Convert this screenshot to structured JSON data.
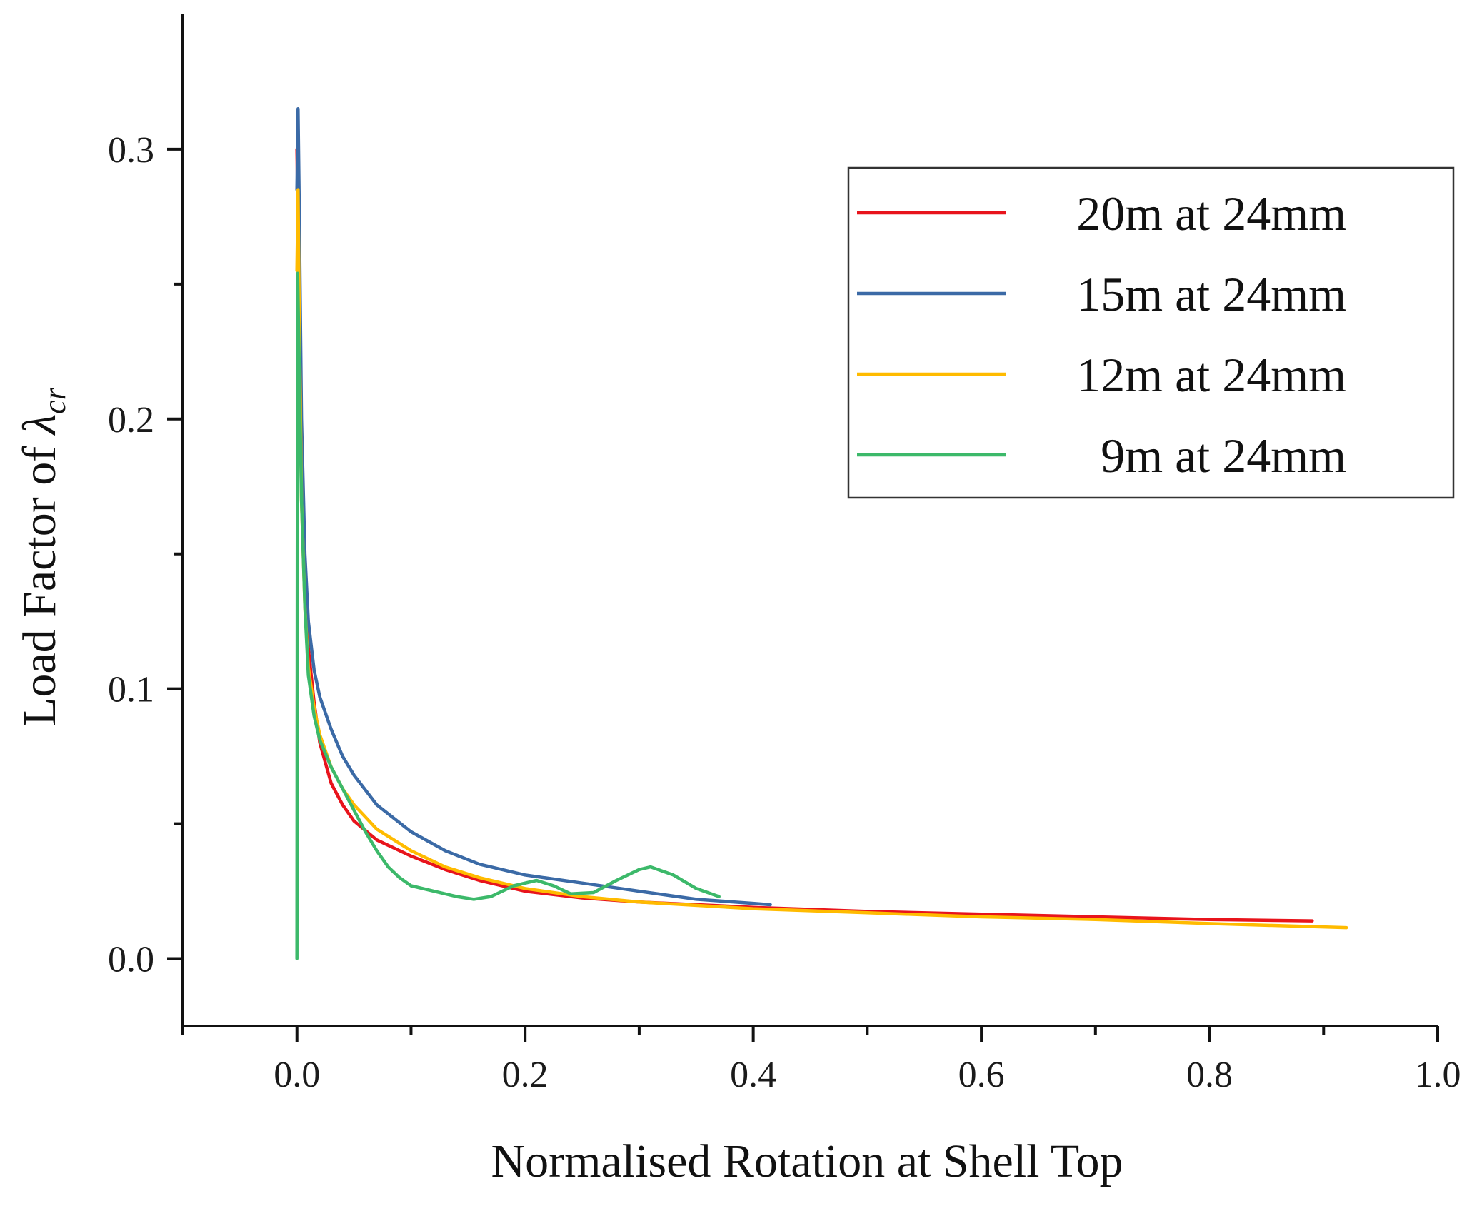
{
  "chart_data": {
    "type": "line",
    "title": "",
    "xlabel": "Normalised Rotation at Shell Top",
    "ylabel": {
      "prefix": "Load Factor of ",
      "symbol": "λ",
      "subscript": "cr"
    },
    "xlim": [
      -0.1,
      1.0
    ],
    "ylim": [
      -0.025,
      0.35
    ],
    "x_ticks": [
      0.0,
      0.2,
      0.4,
      0.6,
      0.8,
      1.0
    ],
    "x_tick_labels": [
      "0.0",
      "0.2",
      "0.4",
      "0.6",
      "0.8",
      "1.0"
    ],
    "x_minor_ticks": [
      -0.1,
      0.1,
      0.3,
      0.5,
      0.7,
      0.9
    ],
    "y_ticks": [
      0.0,
      0.1,
      0.2,
      0.3
    ],
    "y_tick_labels": [
      "0.0",
      "0.1",
      "0.2",
      "0.3"
    ],
    "y_minor_ticks": [
      0.05,
      0.15,
      0.25
    ],
    "grid": false,
    "legend_position": "top-right",
    "series": [
      {
        "name": "20m at 24mm",
        "color": "#e8141c",
        "points": [
          [
            0,
            0.3
          ],
          [
            0.001,
            0.27
          ],
          [
            0.003,
            0.21
          ],
          [
            0.006,
            0.15
          ],
          [
            0.01,
            0.115
          ],
          [
            0.015,
            0.095
          ],
          [
            0.02,
            0.08
          ],
          [
            0.03,
            0.065
          ],
          [
            0.04,
            0.057
          ],
          [
            0.05,
            0.051
          ],
          [
            0.07,
            0.044
          ],
          [
            0.1,
            0.038
          ],
          [
            0.13,
            0.033
          ],
          [
            0.16,
            0.029
          ],
          [
            0.2,
            0.025
          ],
          [
            0.25,
            0.0225
          ],
          [
            0.3,
            0.021
          ],
          [
            0.4,
            0.019
          ],
          [
            0.5,
            0.0175
          ],
          [
            0.6,
            0.0165
          ],
          [
            0.7,
            0.0155
          ],
          [
            0.8,
            0.0145
          ],
          [
            0.89,
            0.014
          ]
        ]
      },
      {
        "name": "15m at 24mm",
        "color": "#3b6aa6",
        "points": [
          [
            0,
            0.285
          ],
          [
            0.001,
            0.315
          ],
          [
            0.002,
            0.28
          ],
          [
            0.004,
            0.2
          ],
          [
            0.007,
            0.15
          ],
          [
            0.01,
            0.125
          ],
          [
            0.015,
            0.107
          ],
          [
            0.02,
            0.097
          ],
          [
            0.03,
            0.085
          ],
          [
            0.04,
            0.075
          ],
          [
            0.05,
            0.068
          ],
          [
            0.07,
            0.057
          ],
          [
            0.1,
            0.047
          ],
          [
            0.13,
            0.04
          ],
          [
            0.16,
            0.035
          ],
          [
            0.2,
            0.031
          ],
          [
            0.25,
            0.028
          ],
          [
            0.3,
            0.025
          ],
          [
            0.35,
            0.022
          ],
          [
            0.4,
            0.0205
          ],
          [
            0.415,
            0.02
          ]
        ]
      },
      {
        "name": "12m at 24mm",
        "color": "#ffbb00",
        "points": [
          [
            0,
            0.255
          ],
          [
            0.001,
            0.285
          ],
          [
            0.002,
            0.24
          ],
          [
            0.004,
            0.17
          ],
          [
            0.007,
            0.13
          ],
          [
            0.01,
            0.108
          ],
          [
            0.015,
            0.093
          ],
          [
            0.02,
            0.083
          ],
          [
            0.03,
            0.071
          ],
          [
            0.04,
            0.063
          ],
          [
            0.05,
            0.057
          ],
          [
            0.07,
            0.048
          ],
          [
            0.1,
            0.04
          ],
          [
            0.13,
            0.034
          ],
          [
            0.16,
            0.03
          ],
          [
            0.2,
            0.026
          ],
          [
            0.25,
            0.023
          ],
          [
            0.3,
            0.021
          ],
          [
            0.4,
            0.0185
          ],
          [
            0.5,
            0.017
          ],
          [
            0.6,
            0.0155
          ],
          [
            0.7,
            0.0145
          ],
          [
            0.8,
            0.013
          ],
          [
            0.92,
            0.0115
          ]
        ]
      },
      {
        "name": "9m at 24mm",
        "color": "#3cb96a",
        "points": [
          [
            0,
            0.0
          ],
          [
            0.0003,
            0.15
          ],
          [
            0.0006,
            0.254
          ],
          [
            0.002,
            0.22
          ],
          [
            0.004,
            0.17
          ],
          [
            0.007,
            0.13
          ],
          [
            0.01,
            0.105
          ],
          [
            0.015,
            0.09
          ],
          [
            0.02,
            0.081
          ],
          [
            0.03,
            0.071
          ],
          [
            0.04,
            0.063
          ],
          [
            0.05,
            0.055
          ],
          [
            0.06,
            0.047
          ],
          [
            0.07,
            0.04
          ],
          [
            0.08,
            0.034
          ],
          [
            0.09,
            0.03
          ],
          [
            0.1,
            0.027
          ],
          [
            0.12,
            0.025
          ],
          [
            0.14,
            0.023
          ],
          [
            0.155,
            0.022
          ],
          [
            0.17,
            0.023
          ],
          [
            0.19,
            0.027
          ],
          [
            0.21,
            0.029
          ],
          [
            0.225,
            0.027
          ],
          [
            0.24,
            0.024
          ],
          [
            0.26,
            0.0245
          ],
          [
            0.28,
            0.029
          ],
          [
            0.3,
            0.033
          ],
          [
            0.31,
            0.034
          ],
          [
            0.33,
            0.031
          ],
          [
            0.35,
            0.026
          ],
          [
            0.37,
            0.023
          ]
        ]
      }
    ]
  }
}
